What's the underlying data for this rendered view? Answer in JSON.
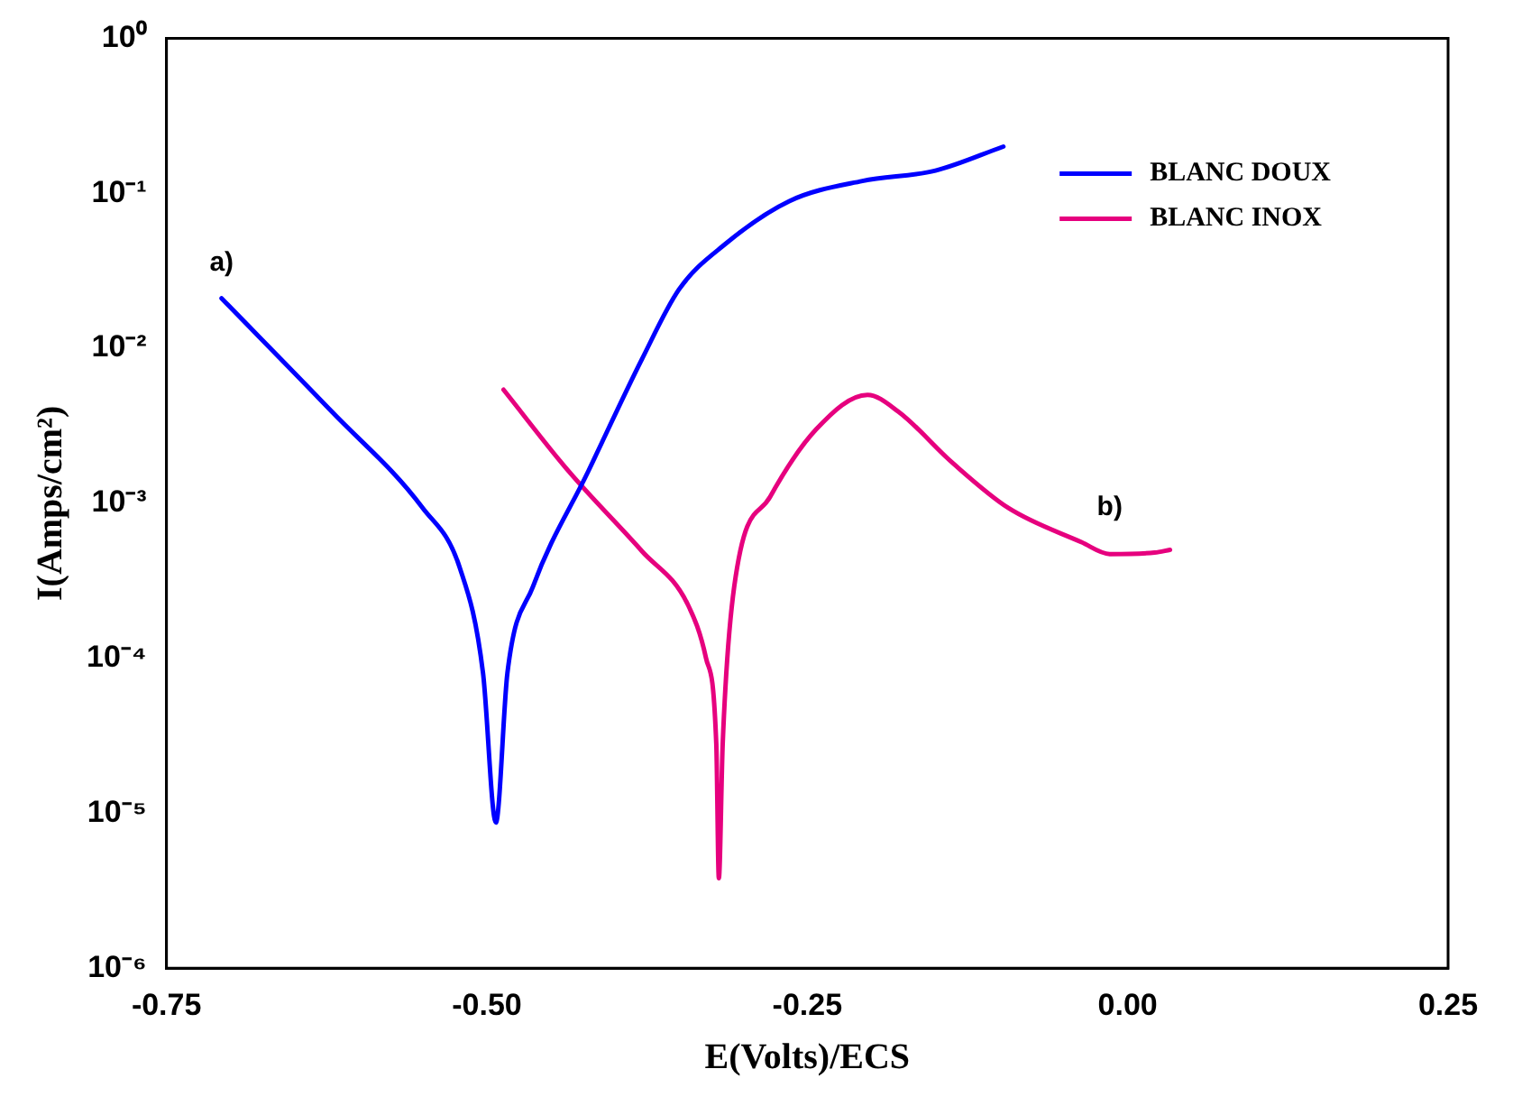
{
  "chart_data": {
    "type": "line",
    "xlabel": "E(Volts)/ECS",
    "ylabel": "I(Amps/cm²)",
    "xlim": [
      -0.75,
      0.25
    ],
    "xticks": [
      {
        "value": -0.75,
        "label": "-0.75"
      },
      {
        "value": -0.5,
        "label": "-0.50"
      },
      {
        "value": -0.25,
        "label": "-0.25"
      },
      {
        "value": 0,
        "label": "0.00"
      },
      {
        "value": 0.25,
        "label": "0.25"
      }
    ],
    "ylim": [
      1e-06,
      1
    ],
    "yticks": [
      {
        "value": 1e-06,
        "label": "10⁻⁶"
      },
      {
        "value": 1e-05,
        "label": "10⁻⁵"
      },
      {
        "value": 0.0001,
        "label": "10⁻⁴"
      },
      {
        "value": 0.001,
        "label": "10⁻³"
      },
      {
        "value": 0.01,
        "label": "10⁻²"
      },
      {
        "value": 0.1,
        "label": "10⁻¹"
      },
      {
        "value": 1,
        "label": "10⁰"
      }
    ],
    "log": "y",
    "grid": false,
    "legend": "top right",
    "marker": "none",
    "line_style": "solid",
    "annotations": [
      "a)",
      "b)"
    ],
    "series": [
      {
        "name": "BLANC DOUX",
        "color": "#0000ff",
        "type": "line",
        "x": [
          -0.707,
          -0.621,
          -0.55,
          -0.521,
          -0.503,
          -0.493,
          -0.484,
          -0.464,
          -0.421,
          -0.379,
          -0.35,
          -0.314,
          -0.264,
          -0.207,
          -0.15,
          -0.097
        ],
        "values": [
          0.021,
          0.0039,
          0.00093,
          0.00038,
          8e-05,
          8.7e-06,
          8e-05,
          0.00029,
          0.0016,
          0.0085,
          0.024,
          0.047,
          0.089,
          0.12,
          0.14,
          0.2
        ]
      },
      {
        "name": "BLANC INOX",
        "color": "#e6007e",
        "type": "line",
        "x": [
          -0.487,
          -0.436,
          -0.379,
          -0.343,
          -0.329,
          -0.321,
          -0.319,
          -0.316,
          -0.307,
          -0.279,
          -0.243,
          -0.203,
          -0.179,
          -0.136,
          -0.093,
          -0.036,
          -0.014,
          0.021,
          0.033
        ],
        "values": [
          0.0054,
          0.0016,
          0.00049,
          0.00022,
          0.0001,
          2.8e-05,
          3.8e-06,
          2.8e-05,
          0.00029,
          0.0011,
          0.003,
          0.005,
          0.0039,
          0.0018,
          0.00093,
          0.00056,
          0.00047,
          0.00048,
          0.0005
        ]
      }
    ]
  }
}
